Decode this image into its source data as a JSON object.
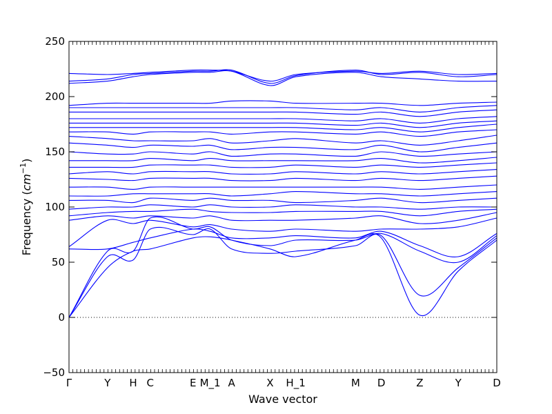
{
  "chart_data": {
    "type": "line",
    "title": "",
    "xlabel": "Wave vector",
    "ylabel_main": "Frequency (",
    "ylabel_unit_base": "cm",
    "ylabel_unit_exp": "−1",
    "ylabel_close": ")",
    "ylim": [
      -50,
      250
    ],
    "yticks": [
      -50,
      0,
      50,
      100,
      150,
      200,
      250
    ],
    "x_positions": [
      0,
      0.09,
      0.15,
      0.19,
      0.29,
      0.33,
      0.38,
      0.47,
      0.53,
      0.67,
      0.73,
      0.82,
      0.91,
      1.0
    ],
    "high_symmetry_labels": [
      "Γ",
      "Y",
      "H",
      "C",
      "E",
      "M_1",
      "A",
      "X",
      "H_1",
      "M",
      "D",
      "Z",
      "Y",
      "D"
    ],
    "label_x": [
      0,
      0.09,
      0.15,
      0.19,
      0.29,
      0.33,
      0.38,
      0.47,
      0.53,
      0.67,
      0.73,
      0.82,
      0.91,
      1.0
    ],
    "zero_line": {
      "y": 0,
      "style": "dotted"
    },
    "color": "#0000ff",
    "bands": [
      [
        0,
        45,
        60,
        62,
        72,
        73,
        70,
        62,
        55,
        70,
        72,
        2,
        42,
        70
      ],
      [
        0,
        55,
        52,
        80,
        75,
        80,
        62,
        58,
        60,
        65,
        74,
        20,
        45,
        72
      ],
      [
        0,
        60,
        60,
        90,
        80,
        82,
        70,
        65,
        70,
        70,
        76,
        60,
        50,
        74
      ],
      [
        62,
        62,
        68,
        72,
        80,
        78,
        72,
        72,
        74,
        72,
        78,
        65,
        55,
        76
      ],
      [
        64,
        88,
        85,
        88,
        82,
        84,
        80,
        78,
        80,
        78,
        80,
        80,
        82,
        90
      ],
      [
        88,
        92,
        90,
        92,
        90,
        92,
        88,
        88,
        88,
        90,
        92,
        85,
        88,
        95
      ],
      [
        92,
        95,
        96,
        96,
        98,
        96,
        95,
        95,
        96,
        96,
        96,
        92,
        96,
        98
      ],
      [
        98,
        100,
        100,
        102,
        100,
        102,
        100,
        100,
        102,
        100,
        100,
        98,
        100,
        100
      ],
      [
        106,
        106,
        104,
        108,
        106,
        108,
        106,
        106,
        104,
        106,
        108,
        104,
        106,
        108
      ],
      [
        110,
        110,
        112,
        112,
        112,
        112,
        110,
        112,
        114,
        112,
        112,
        110,
        112,
        114
      ],
      [
        118,
        118,
        116,
        118,
        118,
        118,
        118,
        118,
        118,
        118,
        118,
        116,
        118,
        120
      ],
      [
        126,
        125,
        124,
        126,
        126,
        126,
        124,
        124,
        126,
        124,
        126,
        124,
        126,
        128
      ],
      [
        130,
        132,
        130,
        132,
        132,
        132,
        130,
        130,
        132,
        130,
        132,
        130,
        132,
        134
      ],
      [
        136,
        136,
        136,
        138,
        138,
        138,
        136,
        136,
        138,
        136,
        138,
        136,
        138,
        140
      ],
      [
        142,
        142,
        142,
        144,
        142,
        144,
        142,
        142,
        142,
        142,
        144,
        140,
        142,
        145
      ],
      [
        150,
        148,
        148,
        150,
        148,
        150,
        146,
        148,
        148,
        146,
        150,
        146,
        148,
        150
      ],
      [
        158,
        156,
        154,
        156,
        155,
        156,
        152,
        154,
        154,
        152,
        156,
        150,
        154,
        158
      ],
      [
        164,
        162,
        160,
        160,
        160,
        162,
        158,
        160,
        162,
        158,
        160,
        156,
        160,
        165
      ],
      [
        168,
        168,
        166,
        168,
        168,
        168,
        166,
        168,
        168,
        166,
        168,
        164,
        168,
        170
      ],
      [
        172,
        172,
        172,
        172,
        172,
        172,
        172,
        172,
        172,
        170,
        172,
        168,
        172,
        175
      ],
      [
        176,
        176,
        176,
        176,
        176,
        176,
        176,
        176,
        176,
        174,
        176,
        172,
        176,
        178
      ],
      [
        180,
        180,
        180,
        180,
        180,
        180,
        180,
        180,
        180,
        178,
        180,
        176,
        180,
        182
      ],
      [
        186,
        186,
        186,
        186,
        186,
        186,
        186,
        186,
        186,
        184,
        186,
        182,
        186,
        188
      ],
      [
        190,
        190,
        190,
        190,
        190,
        190,
        190,
        190,
        190,
        188,
        190,
        186,
        190,
        192
      ],
      [
        192,
        194,
        194,
        194,
        194,
        194,
        196,
        196,
        194,
        194,
        194,
        192,
        194,
        195
      ],
      [
        212,
        214,
        218,
        220,
        222,
        222,
        223,
        210,
        218,
        222,
        218,
        216,
        214,
        214
      ],
      [
        214,
        216,
        220,
        221,
        223,
        223,
        224,
        212,
        219,
        224,
        220,
        222,
        218,
        220
      ],
      [
        221,
        220,
        221,
        222,
        224,
        224,
        223,
        214,
        220,
        223,
        221,
        223,
        220,
        221
      ]
    ]
  }
}
